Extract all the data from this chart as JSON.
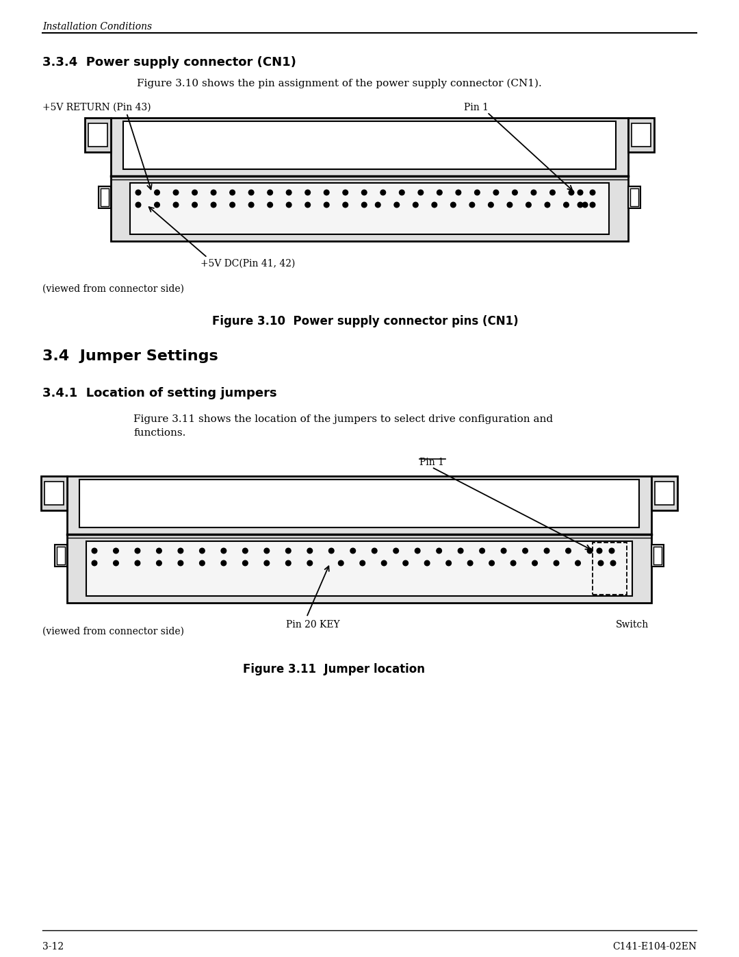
{
  "bg_color": "#ffffff",
  "header_text": "Installation Conditions",
  "section_title": "3.3.4  Power supply connector (CN1)",
  "fig310_caption": "Figure 3.10 shows the pin assignment of the power supply connector (CN1).",
  "fig310_label_left": "+5V RETURN (Pin 43)",
  "fig310_label_right": "Pin 1",
  "fig310_label_bottom": "+5V DC(Pin 41, 42)",
  "fig310_viewed": "(viewed from connector side)",
  "fig310_title": "Figure 3.10  Power supply connector pins (CN1)",
  "section2_title": "3.4  Jumper Settings",
  "section2_sub": "3.4.1  Location of setting jumpers",
  "fig311_caption1": "Figure 3.11 shows the location of the jumpers to select drive configuration and",
  "fig311_caption2": "functions.",
  "fig311_label_top": "Pin 1",
  "fig311_label_bottom": "Pin 20 KEY",
  "fig311_label_switch": "Switch",
  "fig311_viewed": "(viewed from connector side)",
  "fig311_title": "Figure 3.11  Jumper location",
  "footer_left": "3-12",
  "footer_right": "C141-E104-02EN"
}
